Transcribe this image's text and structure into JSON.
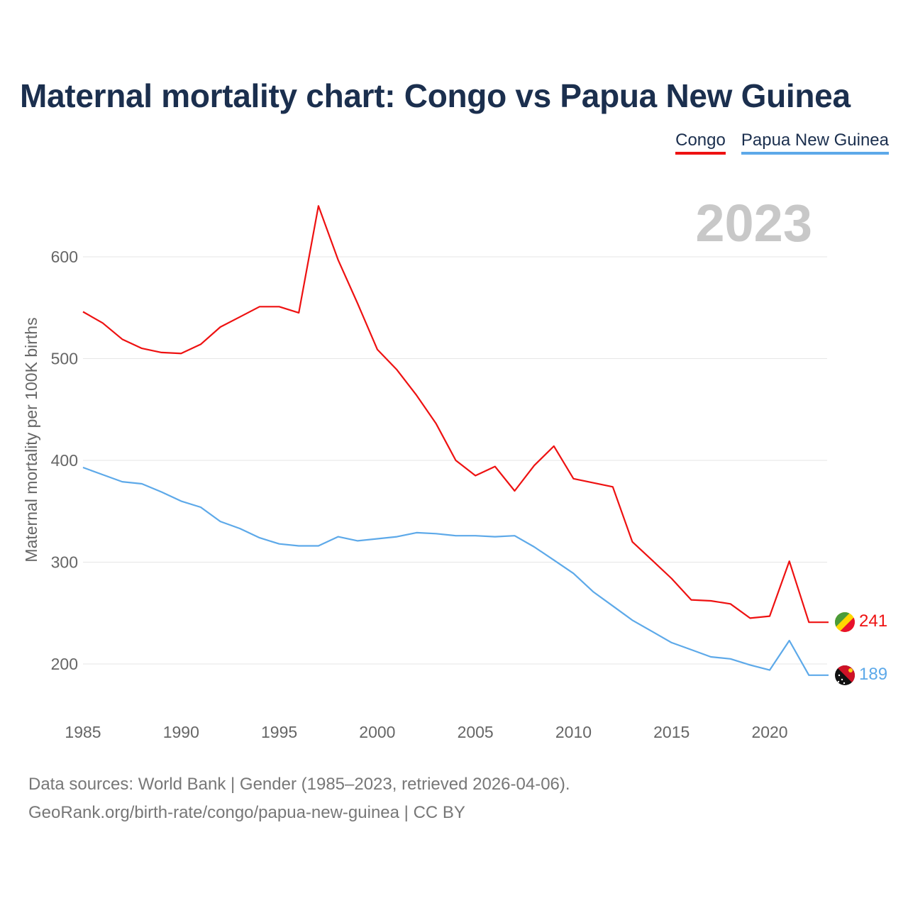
{
  "title": "Maternal mortality chart: Congo vs Papua New Guinea",
  "legend": {
    "congo": "Congo",
    "png": "Papua New Guinea"
  },
  "year_watermark": "2023",
  "end_labels": {
    "congo": "241",
    "png": "189"
  },
  "colors": {
    "congo": "#ee1111",
    "png": "#5da9e9",
    "title": "#1b2f4e",
    "grid": "#e6e6e6",
    "watermark": "#c8c8c8",
    "axis_text": "#666666"
  },
  "footer": {
    "line1": "Data sources: World Bank | Gender (1985–2023, retrieved 2026-04-06).",
    "line2": "GeoRank.org/birth-rate/congo/papua-new-guinea | CC BY"
  },
  "chart_data": {
    "type": "line",
    "title": "Maternal mortality chart: Congo vs Papua New Guinea",
    "xlabel": "",
    "ylabel": "Maternal mortality per 100K births",
    "xlim": [
      1985,
      2023
    ],
    "ylim": [
      160,
      660
    ],
    "yticks": [
      200,
      300,
      400,
      500,
      600
    ],
    "xticks": [
      1985,
      1990,
      1995,
      2000,
      2005,
      2010,
      2015,
      2020
    ],
    "grid": true,
    "x": [
      1985,
      1986,
      1987,
      1988,
      1989,
      1990,
      1991,
      1992,
      1993,
      1994,
      1995,
      1996,
      1997,
      1998,
      1999,
      2000,
      2001,
      2002,
      2003,
      2004,
      2005,
      2006,
      2007,
      2008,
      2009,
      2010,
      2011,
      2012,
      2013,
      2014,
      2015,
      2016,
      2017,
      2018,
      2019,
      2020,
      2021,
      2022,
      2023
    ],
    "series": [
      {
        "name": "Congo",
        "values": [
          546,
          535,
          519,
          510,
          506,
          505,
          514,
          531,
          541,
          551,
          551,
          545,
          650,
          597,
          554,
          509,
          489,
          464,
          436,
          400,
          385,
          394,
          370,
          395,
          414,
          382,
          378,
          374,
          320,
          302,
          284,
          263,
          262,
          259,
          245,
          247,
          301,
          241,
          241
        ]
      },
      {
        "name": "Papua New Guinea",
        "values": [
          393,
          386,
          379,
          377,
          369,
          360,
          354,
          340,
          333,
          324,
          318,
          316,
          316,
          325,
          321,
          323,
          325,
          329,
          328,
          326,
          326,
          325,
          326,
          315,
          302,
          289,
          271,
          257,
          243,
          232,
          221,
          214,
          207,
          205,
          199,
          194,
          223,
          189,
          189
        ]
      }
    ]
  }
}
